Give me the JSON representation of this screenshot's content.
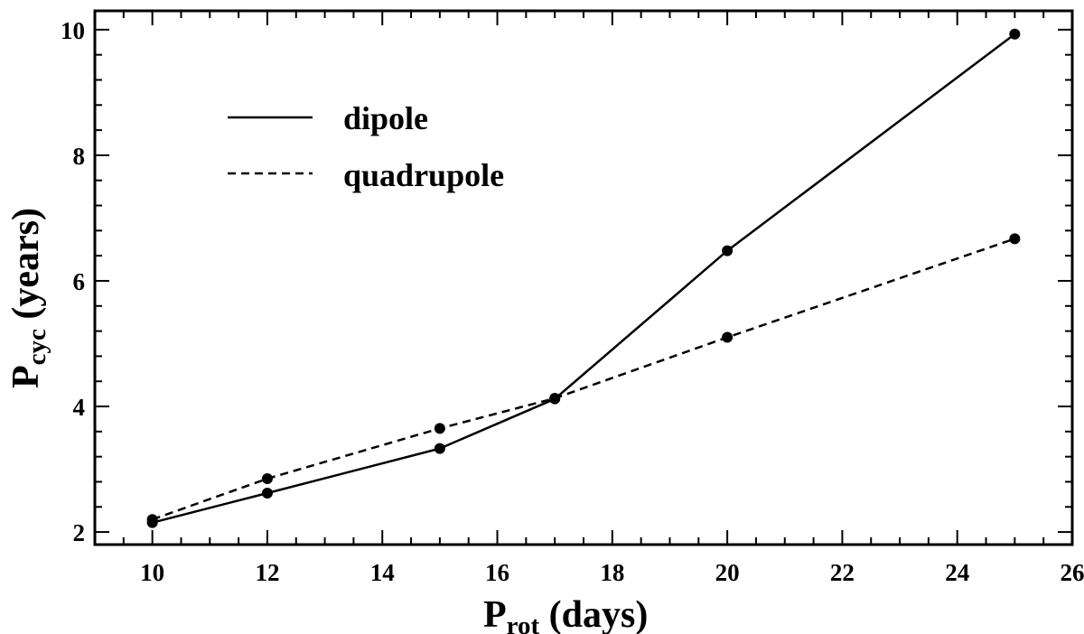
{
  "chart_data": {
    "type": "line",
    "xlabel": {
      "main": "P",
      "sub": "rot",
      "rest": " (days)"
    },
    "ylabel": {
      "main": "P",
      "sub": "cyc",
      "rest": " (years)"
    },
    "xlim": [
      9,
      26
    ],
    "ylim": [
      1.8,
      10.3
    ],
    "xticks": [
      10,
      12,
      14,
      16,
      18,
      20,
      22,
      24,
      26
    ],
    "yticks": [
      2,
      4,
      6,
      8,
      10
    ],
    "x_minor_step": 0.5,
    "y_minor_step": 0.4,
    "grid": false,
    "legend_position": "upper-left",
    "series": [
      {
        "name": "dipole",
        "linestyle": "solid",
        "color": "#000000",
        "x": [
          10,
          12,
          15,
          17,
          20,
          25
        ],
        "y": [
          2.15,
          2.62,
          3.33,
          4.12,
          6.48,
          9.93
        ]
      },
      {
        "name": "quadrupole",
        "linestyle": "dashed",
        "color": "#000000",
        "x": [
          10,
          12,
          15,
          17,
          20,
          25
        ],
        "y": [
          2.2,
          2.85,
          3.65,
          4.13,
          5.1,
          6.67
        ]
      }
    ]
  }
}
